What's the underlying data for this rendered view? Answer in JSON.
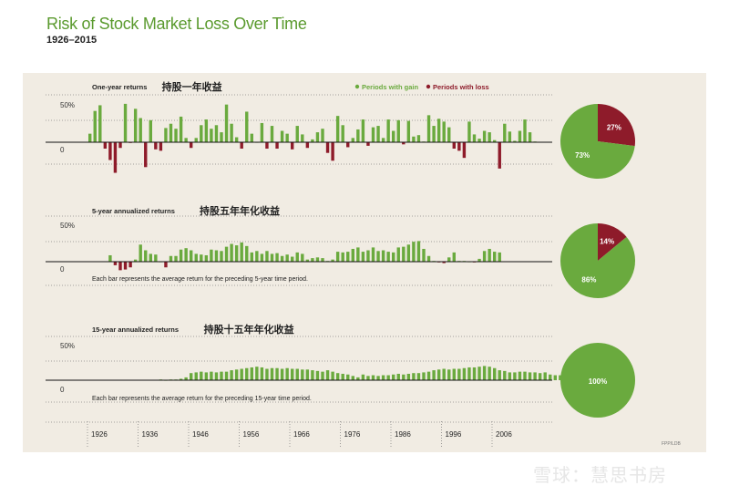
{
  "title": "Risk of Stock Market Loss Over Time",
  "subtitle": "1926–2015",
  "legend": {
    "gain": "Periods with gain",
    "loss": "Periods with loss"
  },
  "colors": {
    "gain": "#6aaa3e",
    "loss": "#8e1b2a",
    "title": "#5a9a2e",
    "panel": "#f1ece3"
  },
  "footer_code": "FPP/LDB",
  "watermark": "雪球：慧思书房",
  "x_ticks": [
    "1926",
    "1936",
    "1946",
    "1956",
    "1966",
    "1976",
    "1986",
    "1996",
    "2006"
  ],
  "chart_data": [
    {
      "type": "bar",
      "title": "One-year returns",
      "title_cn": "持股一年收益",
      "note": "",
      "y_tick_labels": [
        "50%",
        "0"
      ],
      "ylim": [
        -50,
        60
      ],
      "start_year": 1926,
      "values": [
        12,
        44,
        52,
        -9,
        -25,
        -43,
        -8,
        54,
        -1,
        47,
        34,
        -35,
        31,
        -10,
        -12,
        20,
        26,
        19,
        36,
        6,
        -8,
        6,
        24,
        32,
        19,
        24,
        14,
        53,
        26,
        7,
        -9,
        43,
        12,
        0,
        27,
        -9,
        23,
        -9,
        16,
        12,
        -10,
        23,
        11,
        -8,
        4,
        14,
        19,
        -15,
        -26,
        37,
        24,
        -7,
        6,
        18,
        32,
        -5,
        21,
        23,
        6,
        32,
        16,
        31,
        -3,
        30,
        8,
        10,
        1,
        38,
        23,
        33,
        29,
        21,
        -9,
        -12,
        -22,
        29,
        11,
        5,
        16,
        14,
        3,
        -37,
        26,
        15,
        2,
        16,
        32,
        14,
        1
      ],
      "pie": [
        {
          "label": "73%",
          "value": 73,
          "category": "gain"
        },
        {
          "label": "27%",
          "value": 27,
          "category": "loss"
        }
      ]
    },
    {
      "type": "bar",
      "title": "5-year annualized returns",
      "title_cn": "持股五年年化收益",
      "note": "Each bar represents the average return for the preceding 5-year time period.",
      "y_tick_labels": [
        "50%",
        "0"
      ],
      "ylim": [
        -50,
        60
      ],
      "start_year": 1930,
      "values": [
        9,
        -5,
        -12,
        -11,
        -8,
        3,
        24,
        16,
        11,
        10,
        0,
        -8,
        8,
        8,
        17,
        19,
        16,
        11,
        10,
        9,
        17,
        16,
        15,
        21,
        25,
        23,
        27,
        22,
        13,
        15,
        11,
        15,
        11,
        12,
        8,
        10,
        7,
        13,
        11,
        3,
        5,
        6,
        5,
        1,
        3,
        14,
        13,
        14,
        18,
        20,
        14,
        16,
        20,
        15,
        16,
        14,
        13,
        20,
        21,
        24,
        28,
        29,
        18,
        8,
        1,
        -1,
        -2,
        6,
        13,
        1,
        1,
        0,
        -1,
        4,
        15,
        18,
        14,
        13
      ],
      "pie": [
        {
          "label": "86%",
          "value": 86,
          "category": "gain"
        },
        {
          "label": "14%",
          "value": 14,
          "category": "loss"
        }
      ]
    },
    {
      "type": "bar",
      "title": "15-year annualized returns",
      "title_cn": "持股十五年年化收益",
      "note": "Each bar represents the average return for the preceding 15-year time period.",
      "y_tick_labels": [
        "50%",
        "0"
      ],
      "ylim": [
        -50,
        60
      ],
      "start_year": 1940,
      "values": [
        1,
        0,
        1,
        1,
        2,
        4,
        10,
        11,
        12,
        11,
        12,
        11,
        12,
        12,
        14,
        15,
        16,
        17,
        18,
        19,
        18,
        16,
        17,
        17,
        16,
        17,
        16,
        16,
        15,
        15,
        14,
        13,
        12,
        14,
        12,
        10,
        9,
        8,
        6,
        4,
        8,
        6,
        7,
        6,
        7,
        7,
        8,
        9,
        8,
        9,
        10,
        10,
        11,
        12,
        14,
        15,
        16,
        15,
        16,
        16,
        17,
        18,
        18,
        19,
        20,
        19,
        17,
        14,
        13,
        11,
        11,
        12,
        12,
        11,
        11,
        10,
        11,
        8,
        7,
        7,
        6,
        7,
        5,
        6,
        5,
        6
      ],
      "pie": [
        {
          "label": "100%",
          "value": 100,
          "category": "gain"
        }
      ]
    }
  ]
}
